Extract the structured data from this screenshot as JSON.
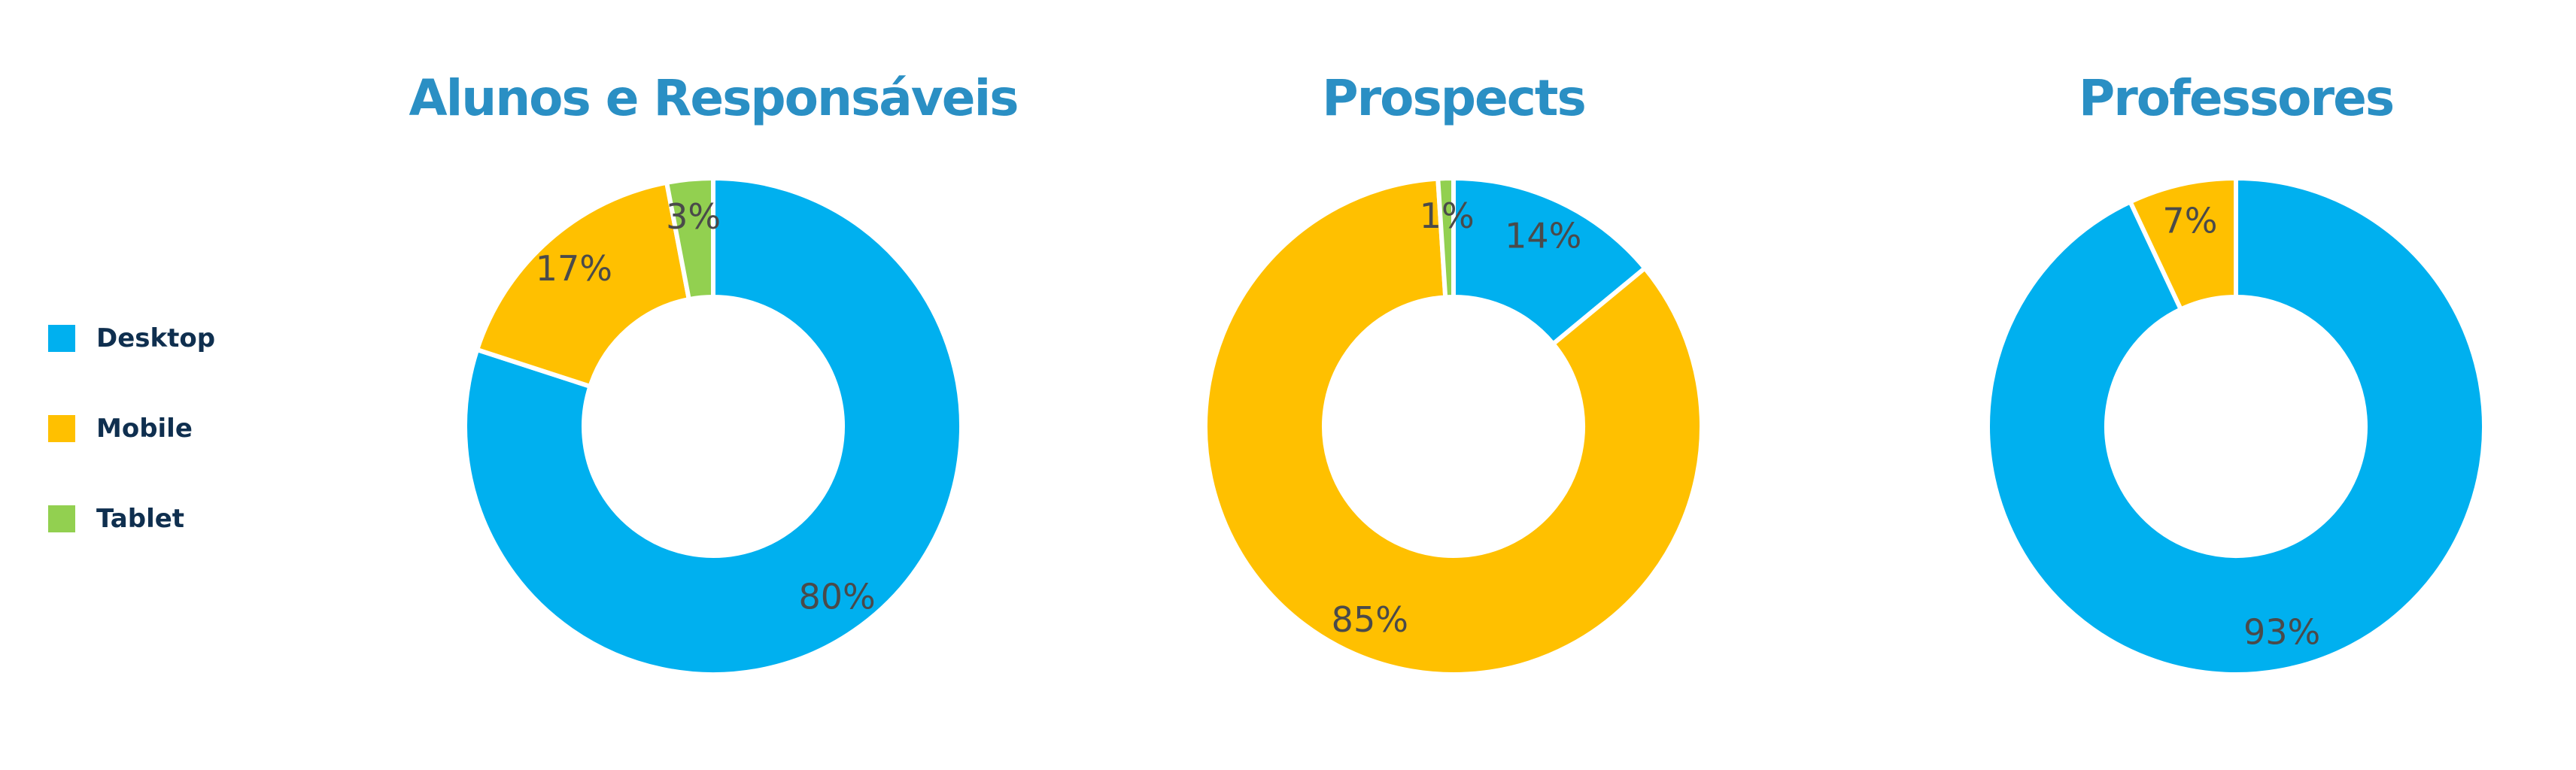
{
  "legend": [
    {
      "label": "Desktop",
      "color": "#00b0ef"
    },
    {
      "label": "Mobile",
      "color": "#ffc000"
    },
    {
      "label": "Tablet",
      "color": "#92d050"
    }
  ],
  "chart_data": [
    {
      "type": "pie",
      "title": "Alunos e Responsáveis",
      "categories": [
        "Desktop",
        "Mobile",
        "Tablet"
      ],
      "values": [
        80,
        17,
        3
      ],
      "labels": [
        "80%",
        "17%",
        "3%"
      ],
      "colors": [
        "#00b0ef",
        "#ffc000",
        "#92d050"
      ],
      "legend": "left"
    },
    {
      "type": "pie",
      "title": "Prospects",
      "categories": [
        "Desktop",
        "Mobile",
        "Tablet"
      ],
      "values": [
        14,
        85,
        1
      ],
      "labels": [
        "14%",
        "85%",
        "1%"
      ],
      "colors": [
        "#00b0ef",
        "#ffc000",
        "#92d050"
      ],
      "legend": "left"
    },
    {
      "type": "pie",
      "title": "Professores",
      "categories": [
        "Desktop",
        "Mobile"
      ],
      "values": [
        93,
        7
      ],
      "labels": [
        "93%",
        "7%"
      ],
      "colors": [
        "#00b0ef",
        "#ffc000"
      ],
      "legend": "left"
    }
  ]
}
